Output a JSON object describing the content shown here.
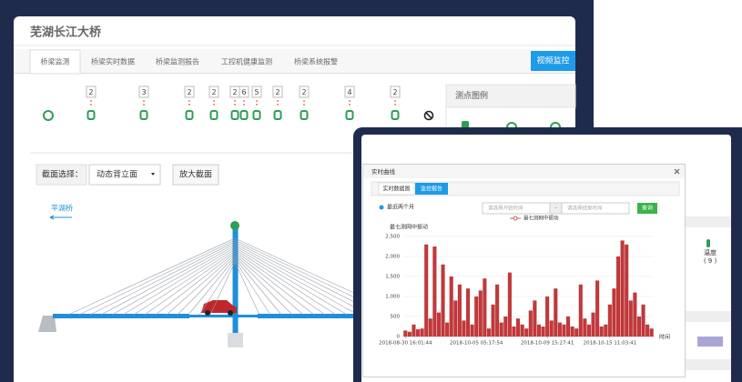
{
  "back_window": {
    "title": "芜湖长江大桥",
    "tabs": [
      "桥梁监测",
      "桥梁实时数据",
      "桥梁监测报告",
      "工控机健康监测",
      "桥梁系统报警"
    ],
    "video_button": "视频监控",
    "sensor_counts": [
      2,
      3,
      2,
      2,
      2,
      6,
      5,
      2,
      2,
      4,
      2
    ],
    "legend_title": "测点图例",
    "section_label": "截面选择：",
    "section_select": "动态背立面",
    "zoom_button": "放大截面",
    "direction_label": "平湖桥"
  },
  "front_window": {
    "dialog_title": "实时曲线",
    "tabs": [
      "实时数据图",
      "监控报告"
    ],
    "radio_label": "最近两个月",
    "start_placeholder": "请选择开始时间",
    "separator": "-",
    "end_placeholder": "请选择结束时间",
    "query_button": "查询",
    "side_labels": [
      "温度",
      "( 9 )"
    ]
  },
  "chart_data": {
    "type": "bar",
    "y_label": "最七测网中振动",
    "x_label": "时间",
    "categories": [
      "2018-08-30 16:01:44",
      null,
      null,
      null,
      null,
      null,
      null,
      null,
      null,
      null,
      null,
      null,
      null,
      null,
      null,
      null,
      null,
      "2018-10-05 05:17:54",
      null,
      null,
      null,
      null,
      null,
      null,
      null,
      null,
      null,
      null,
      null,
      null,
      null,
      null,
      null,
      null,
      "2018-10-09 15:27:41",
      null,
      null,
      null,
      null,
      null,
      null,
      null,
      null,
      null,
      null,
      null,
      null,
      null,
      null,
      "2018-10-15 11:03:41",
      null,
      null,
      null,
      null,
      null,
      null,
      null,
      null,
      null,
      null
    ],
    "series": [
      {
        "name": "最七测网中振动",
        "color": "#c0393b",
        "values": [
          150,
          120,
          300,
          180,
          200,
          2300,
          450,
          2250,
          600,
          1800,
          350,
          1500,
          900,
          1300,
          400,
          1200,
          300,
          1000,
          1150,
          1450,
          200,
          800,
          1300,
          350,
          500,
          1600,
          250,
          450,
          300,
          200,
          650,
          900,
          300,
          250,
          1000,
          400,
          1200,
          350,
          300,
          500,
          250,
          200,
          1300,
          450,
          300,
          600,
          1400,
          250,
          300,
          800,
          1200,
          2000,
          2400,
          2300,
          900,
          1100,
          500,
          800,
          300,
          200
        ]
      }
    ],
    "ylim": [
      0,
      2500
    ],
    "yticks": [
      0,
      500,
      {
        "value": 1000,
        "label": "1,000"
      },
      {
        "value": 1500,
        "label": "1,500"
      },
      {
        "value": 2000,
        "label": "2,000"
      },
      {
        "value": 2500,
        "label": "2,500"
      }
    ],
    "grid": true
  }
}
